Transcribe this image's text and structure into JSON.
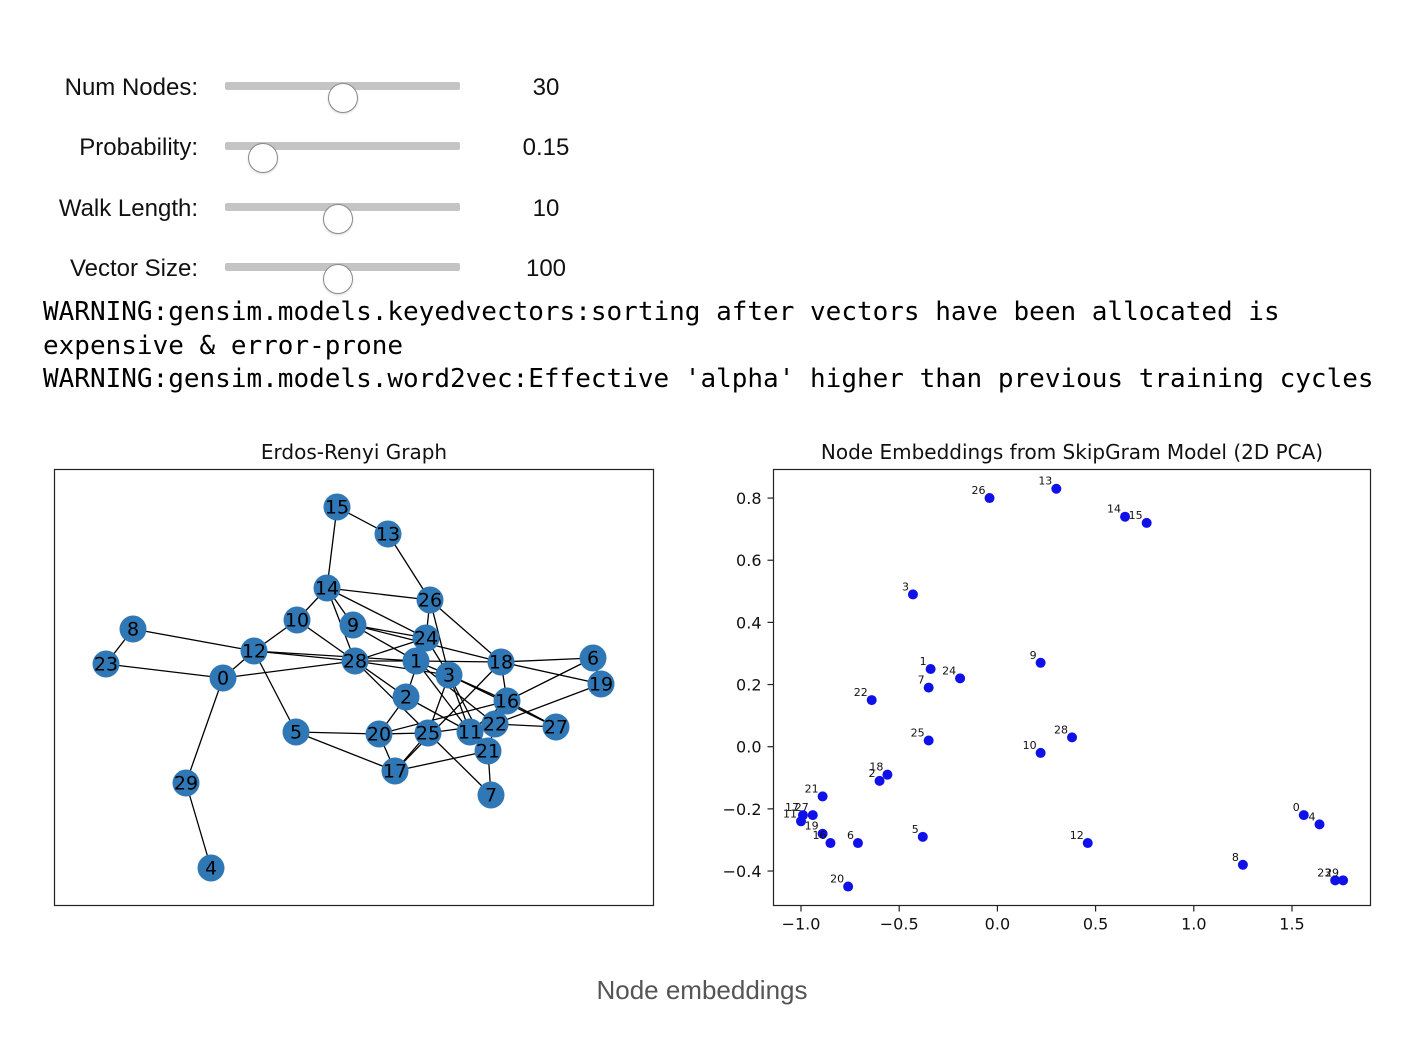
{
  "sliders": [
    {
      "label": "Num Nodes:",
      "value": "30",
      "fraction": 0.5
    },
    {
      "label": "Probability:",
      "value": "0.15",
      "fraction": 0.16
    },
    {
      "label": "Walk Length:",
      "value": "10",
      "fraction": 0.48
    },
    {
      "label": "Vector Size:",
      "value": "100",
      "fraction": 0.48
    }
  ],
  "log": {
    "lines": [
      "WARNING:gensim.models.keyedvectors:sorting after vectors have been allocated is expensive & error-prone",
      "WARNING:gensim.models.word2vec:Effective 'alpha' higher than previous training cycles"
    ]
  },
  "caption": "Node embeddings",
  "chart_data": [
    {
      "type": "network",
      "title": "Erdos-Renyi Graph",
      "node_color": "#2f78b5",
      "nodes": [
        "0",
        "1",
        "2",
        "3",
        "4",
        "5",
        "6",
        "7",
        "8",
        "9",
        "10",
        "11",
        "12",
        "13",
        "14",
        "15",
        "16",
        "17",
        "18",
        "19",
        "20",
        "21",
        "22",
        "23",
        "24",
        "25",
        "26",
        "27",
        "28",
        "29"
      ],
      "edges": [
        [
          "15",
          "13"
        ],
        [
          "15",
          "14"
        ],
        [
          "13",
          "26"
        ],
        [
          "14",
          "26"
        ],
        [
          "14",
          "10"
        ],
        [
          "14",
          "9"
        ],
        [
          "14",
          "24"
        ],
        [
          "14",
          "28"
        ],
        [
          "10",
          "12"
        ],
        [
          "10",
          "28"
        ],
        [
          "26",
          "24"
        ],
        [
          "26",
          "18"
        ],
        [
          "26",
          "3"
        ],
        [
          "9",
          "24"
        ],
        [
          "9",
          "1"
        ],
        [
          "9",
          "18"
        ],
        [
          "24",
          "3"
        ],
        [
          "24",
          "1"
        ],
        [
          "24",
          "2"
        ],
        [
          "24",
          "28"
        ],
        [
          "8",
          "12"
        ],
        [
          "8",
          "23"
        ],
        [
          "23",
          "0"
        ],
        [
          "12",
          "0"
        ],
        [
          "12",
          "28"
        ],
        [
          "12",
          "1"
        ],
        [
          "12",
          "5"
        ],
        [
          "0",
          "28"
        ],
        [
          "0",
          "29"
        ],
        [
          "29",
          "4"
        ],
        [
          "28",
          "1"
        ],
        [
          "28",
          "2"
        ],
        [
          "28",
          "25"
        ],
        [
          "28",
          "3"
        ],
        [
          "1",
          "18"
        ],
        [
          "1",
          "3"
        ],
        [
          "1",
          "11"
        ],
        [
          "1",
          "22"
        ],
        [
          "3",
          "16"
        ],
        [
          "3",
          "27"
        ],
        [
          "3",
          "11"
        ],
        [
          "3",
          "21"
        ],
        [
          "3",
          "25"
        ],
        [
          "18",
          "6"
        ],
        [
          "18",
          "19"
        ],
        [
          "18",
          "16"
        ],
        [
          "18",
          "17"
        ],
        [
          "6",
          "19"
        ],
        [
          "6",
          "16"
        ],
        [
          "16",
          "27"
        ],
        [
          "16",
          "11"
        ],
        [
          "16",
          "22"
        ],
        [
          "19",
          "22"
        ],
        [
          "2",
          "20"
        ],
        [
          "5",
          "20"
        ],
        [
          "5",
          "17"
        ],
        [
          "20",
          "25"
        ],
        [
          "20",
          "17"
        ],
        [
          "20",
          "16"
        ],
        [
          "25",
          "17"
        ],
        [
          "25",
          "7"
        ],
        [
          "25",
          "22"
        ],
        [
          "11",
          "21"
        ],
        [
          "11",
          "22"
        ],
        [
          "22",
          "21"
        ],
        [
          "22",
          "27"
        ],
        [
          "21",
          "7"
        ],
        [
          "21",
          "17"
        ],
        [
          "2",
          "11"
        ]
      ]
    },
    {
      "type": "scatter",
      "title": "Node Embeddings from SkipGram Model (2D PCA)",
      "color": "#1010e8",
      "xlim": [
        -1.15,
        1.9
      ],
      "ylim": [
        -0.5,
        0.9
      ],
      "xticks": [
        "−1.0",
        "−0.5",
        "0.0",
        "0.5",
        "1.0",
        "1.5"
      ],
      "xtick_values": [
        -1.0,
        -0.5,
        0.0,
        0.5,
        1.0,
        1.5
      ],
      "yticks": [
        "−0.4",
        "−0.2",
        "0.0",
        "0.2",
        "0.4",
        "0.6",
        "0.8"
      ],
      "ytick_values": [
        -0.4,
        -0.2,
        0.0,
        0.2,
        0.4,
        0.6,
        0.8
      ],
      "points": [
        {
          "label": "13",
          "x": 0.3,
          "y": 0.83
        },
        {
          "label": "26",
          "x": -0.04,
          "y": 0.8
        },
        {
          "label": "14",
          "x": 0.65,
          "y": 0.74
        },
        {
          "label": "15",
          "x": 0.76,
          "y": 0.72
        },
        {
          "label": "3",
          "x": -0.43,
          "y": 0.49
        },
        {
          "label": "1",
          "x": -0.34,
          "y": 0.25
        },
        {
          "label": "24",
          "x": -0.19,
          "y": 0.22
        },
        {
          "label": "7",
          "x": -0.35,
          "y": 0.19
        },
        {
          "label": "9",
          "x": 0.22,
          "y": 0.27
        },
        {
          "label": "22",
          "x": -0.64,
          "y": 0.15
        },
        {
          "label": "25",
          "x": -0.35,
          "y": 0.02
        },
        {
          "label": "28",
          "x": 0.38,
          "y": 0.03
        },
        {
          "label": "10",
          "x": 0.22,
          "y": -0.02
        },
        {
          "label": "18",
          "x": -0.56,
          "y": -0.09
        },
        {
          "label": "2",
          "x": -0.6,
          "y": -0.11
        },
        {
          "label": "21",
          "x": -0.89,
          "y": -0.16
        },
        {
          "label": "27",
          "x": -0.94,
          "y": -0.22
        },
        {
          "label": "17",
          "x": -0.99,
          "y": -0.22
        },
        {
          "label": "11",
          "x": -1.0,
          "y": -0.24
        },
        {
          "label": "19",
          "x": -0.89,
          "y": -0.28
        },
        {
          "label": "16",
          "x": -0.85,
          "y": -0.31
        },
        {
          "label": "6",
          "x": -0.71,
          "y": -0.31
        },
        {
          "label": "5",
          "x": -0.38,
          "y": -0.29
        },
        {
          "label": "12",
          "x": 0.46,
          "y": -0.31
        },
        {
          "label": "20",
          "x": -0.76,
          "y": -0.45
        },
        {
          "label": "0",
          "x": 1.56,
          "y": -0.22
        },
        {
          "label": "4",
          "x": 1.64,
          "y": -0.25
        },
        {
          "label": "8",
          "x": 1.25,
          "y": -0.38
        },
        {
          "label": "23",
          "x": 1.72,
          "y": -0.43
        },
        {
          "label": "29",
          "x": 1.76,
          "y": -0.43
        }
      ]
    }
  ]
}
